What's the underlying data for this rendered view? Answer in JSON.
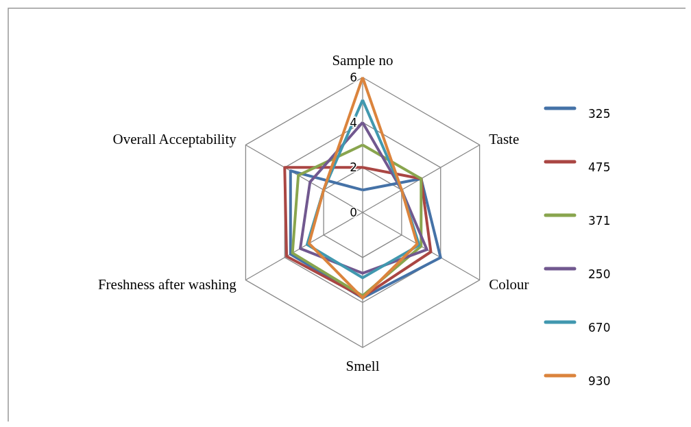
{
  "chart_data": {
    "type": "radar",
    "categories": [
      "Sample no",
      "Taste",
      "Colour",
      "Smell",
      "Freshness after washing",
      "Overall Acceptability"
    ],
    "ylim": [
      0,
      6
    ],
    "yticks": [
      0,
      2,
      4,
      6
    ],
    "legend": "right",
    "grid": true,
    "series": [
      {
        "name": "325",
        "color": "#4572a7",
        "values": [
          1,
          3,
          4,
          3.8,
          3.7,
          3.7
        ]
      },
      {
        "name": "475",
        "color": "#aa4643",
        "values": [
          2,
          3,
          3.5,
          3.75,
          3.9,
          4
        ]
      },
      {
        "name": "371",
        "color": "#89a54e",
        "values": [
          3,
          3,
          3,
          3.7,
          3.6,
          3.3
        ]
      },
      {
        "name": "250",
        "color": "#71588f",
        "values": [
          4,
          2,
          3.3,
          2.7,
          3.2,
          2.7
        ]
      },
      {
        "name": "670",
        "color": "#4198af",
        "values": [
          5,
          2,
          2.9,
          2.9,
          2.85,
          2
        ]
      },
      {
        "name": "930",
        "color": "#db843d",
        "values": [
          6,
          2,
          2.8,
          3.8,
          2.75,
          2
        ]
      }
    ]
  }
}
